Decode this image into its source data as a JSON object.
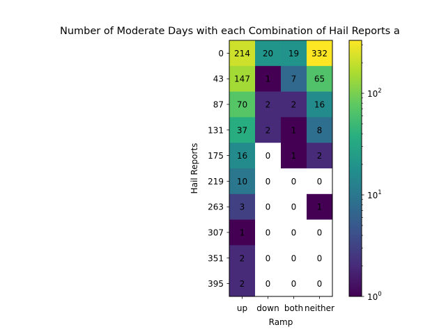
{
  "chart_data": {
    "type": "heatmap",
    "title": "Number of Moderate Days with each Combination of Hail Reports a",
    "xlabel": "Ramp",
    "ylabel": "Hail Reports",
    "x_categories": [
      "up",
      "down",
      "both",
      "neither"
    ],
    "y_categories": [
      "0",
      "43",
      "87",
      "131",
      "175",
      "219",
      "263",
      "307",
      "351",
      "395"
    ],
    "values": [
      [
        214,
        20,
        19,
        332
      ],
      [
        147,
        1,
        7,
        65
      ],
      [
        70,
        2,
        2,
        16
      ],
      [
        37,
        2,
        1,
        8
      ],
      [
        16,
        0,
        1,
        2
      ],
      [
        10,
        0,
        0,
        0
      ],
      [
        3,
        0,
        0,
        1
      ],
      [
        1,
        0,
        0,
        0
      ],
      [
        2,
        0,
        0,
        0
      ],
      [
        2,
        0,
        0,
        0
      ]
    ],
    "color_scale": "log",
    "colormap": "viridis",
    "zero_color": "#ffffff",
    "colorbar": {
      "min": 1,
      "max": 332,
      "ticks": [
        {
          "value": 1,
          "base": "10",
          "exp": "0"
        },
        {
          "value": 10,
          "base": "10",
          "exp": "1"
        },
        {
          "value": 100,
          "base": "10",
          "exp": "2"
        }
      ]
    }
  }
}
